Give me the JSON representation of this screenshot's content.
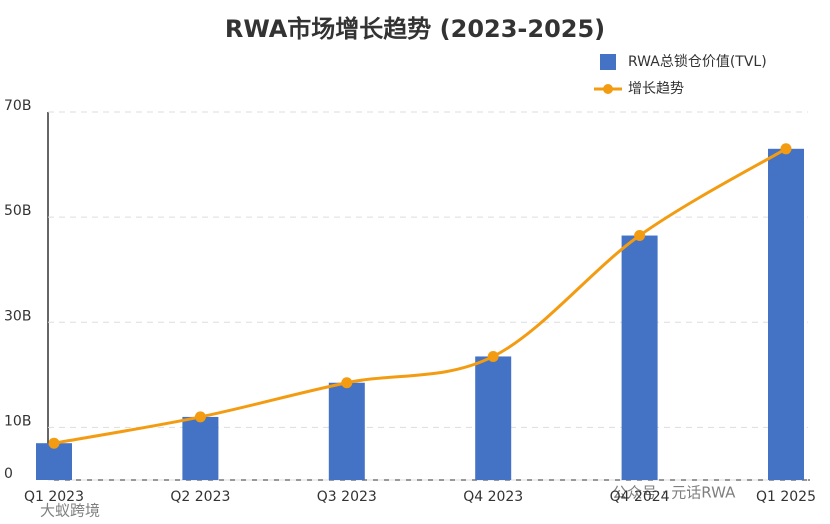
{
  "chart_data": {
    "type": "bar_line",
    "title": "RWA市场增长趋势 (2023-2025)",
    "categories": [
      "Q1 2023",
      "Q2 2023",
      "Q3 2023",
      "Q4 2023",
      "Q4 2024",
      "Q1 2025"
    ],
    "series": [
      {
        "name": "RWA总锁仓价值(TVL)",
        "type": "bar",
        "color": "#4472c4",
        "values": [
          7,
          12,
          18.5,
          23.5,
          46.5,
          63
        ]
      },
      {
        "name": "增长趋势",
        "type": "line",
        "color": "#f39c12",
        "values": [
          7,
          12,
          18.5,
          23.5,
          46.5,
          63
        ]
      }
    ],
    "ylim": [
      0,
      70
    ],
    "yticks": [
      0,
      {
        "value": 10,
        "label": "10B"
      },
      {
        "value": 30,
        "label": "30B"
      },
      {
        "value": 50,
        "label": "50B"
      },
      {
        "value": 70,
        "label": "70B"
      }
    ],
    "grid": true,
    "legend": "top-right"
  },
  "watermarks": [
    "公众号 · 元话RWA",
    "大蚁跨境"
  ]
}
